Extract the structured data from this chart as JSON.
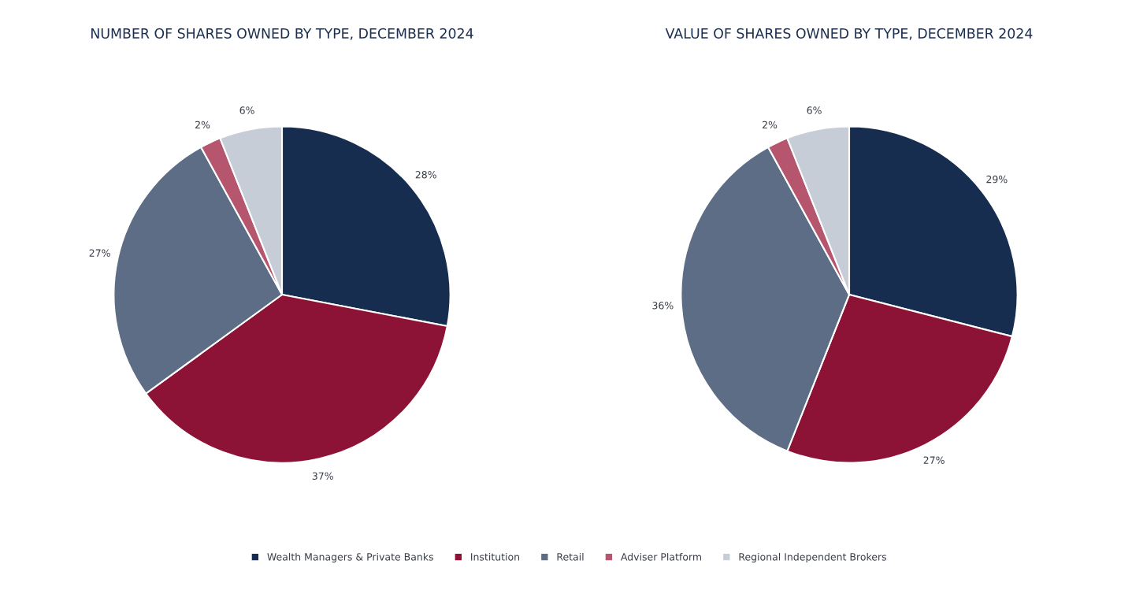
{
  "chart_data": [
    {
      "type": "pie",
      "title": "NUMBER OF SHARES OWNED BY TYPE, DECEMBER 2024",
      "categories": [
        "Wealth Managers & Private Banks",
        "Institution",
        "Retail",
        "Adviser Platform",
        "Regional Independent Brokers"
      ],
      "values": [
        28,
        37,
        27,
        2,
        6
      ],
      "colors": [
        "#172d4f",
        "#8c1335",
        "#5c6d85",
        "#b5566e",
        "#c7cdd6"
      ],
      "value_labels": [
        "28%",
        "37%",
        "27%",
        "2%",
        "6%"
      ],
      "legend": "bottom"
    },
    {
      "type": "pie",
      "title": "VALUE OF SHARES OWNED BY TYPE, DECEMBER 2024",
      "values": [
        29,
        27,
        36,
        2,
        6
      ],
      "colors": [
        "#172d4f",
        "#8c1335",
        "#5c6d85",
        "#b5566e",
        "#c7cdd6"
      ],
      "value_labels": [
        "29%",
        "27%",
        "36%",
        "2%",
        "6%"
      ]
    }
  ]
}
